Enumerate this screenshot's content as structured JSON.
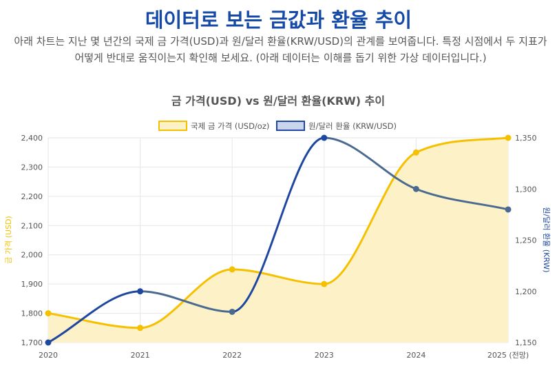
{
  "page": {
    "title": "데이터로 보는 금값과 환율 추이",
    "description": "아래 차트는 지난 몇 년간의 국제 금 가격(USD)과 원/달러 환율(KRW/USD)의 관계를 보여줍니다. 특정 시점에서 두 지표가 어떻게 반대로 움직이는지 확인해 보세요. (아래 데이터는 이해를 돕기 위한 가상 데이터입니다.)"
  },
  "chart_data": {
    "type": "line",
    "title": "금 가격(USD) vs 원/달러 환율(KRW) 추이",
    "categories": [
      "2020",
      "2021",
      "2022",
      "2023",
      "2024",
      "2025 (전망)"
    ],
    "series": [
      {
        "name": "국제 금 가격 (USD/oz)",
        "axis": "left",
        "values": [
          1800,
          1750,
          1950,
          1900,
          2350,
          2400
        ],
        "color": "#f5c000",
        "fill": "#fdf1c8",
        "filled": true
      },
      {
        "name": "원/달러 환율 (KRW/USD)",
        "axis": "right",
        "values": [
          1150,
          1200,
          1180,
          1350,
          1300,
          1280
        ],
        "color": "#1e47a0",
        "color_alt": "#4a6b8f",
        "fill": "#c9d5ec",
        "filled": false
      }
    ],
    "y_left": {
      "label": "금 가격 (USD)",
      "min": 1700,
      "max": 2400,
      "ticks": [
        "1,700",
        "1,800",
        "1,900",
        "2,000",
        "2,100",
        "2,200",
        "2,300",
        "2,400"
      ],
      "tick_values": [
        1700,
        1800,
        1900,
        2000,
        2100,
        2200,
        2300,
        2400
      ]
    },
    "y_right": {
      "label": "원/달러 환율 (KRW)",
      "min": 1150,
      "max": 1350,
      "ticks": [
        "1,150",
        "1,200",
        "1,250",
        "1,300",
        "1,350"
      ],
      "tick_values": [
        1150,
        1200,
        1250,
        1300,
        1350
      ]
    },
    "grid": true,
    "legend_position": "top-center"
  }
}
